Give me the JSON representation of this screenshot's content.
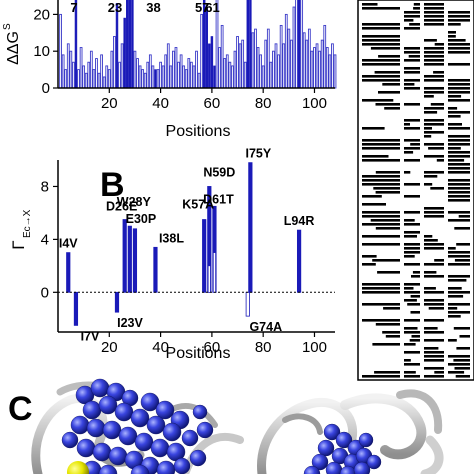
{
  "chart_data": [
    {
      "type": "bar",
      "panel": "",
      "xlabel": "Positions",
      "ylabel": "ΔΔG",
      "ylabel_sup": "S",
      "xlim": [
        0,
        108
      ],
      "ylim": [
        0,
        25
      ],
      "xticks": [
        20,
        40,
        60,
        80,
        100
      ],
      "yticks": [
        0,
        10,
        20
      ],
      "grid": false,
      "x": [
        1,
        2,
        3,
        4,
        5,
        6,
        7,
        8,
        9,
        10,
        11,
        12,
        13,
        14,
        15,
        16,
        17,
        18,
        19,
        20,
        21,
        22,
        23,
        24,
        25,
        26,
        27,
        28,
        29,
        30,
        31,
        32,
        33,
        34,
        35,
        36,
        37,
        38,
        39,
        40,
        41,
        42,
        43,
        44,
        45,
        46,
        47,
        48,
        49,
        50,
        51,
        52,
        53,
        54,
        55,
        56,
        57,
        58,
        59,
        60,
        61,
        62,
        63,
        64,
        65,
        66,
        67,
        68,
        69,
        70,
        71,
        72,
        73,
        74,
        75,
        76,
        77,
        78,
        79,
        80,
        81,
        82,
        83,
        84,
        85,
        86,
        87,
        88,
        89,
        90,
        91,
        92,
        93,
        94,
        95,
        96,
        97,
        98,
        99,
        100,
        101,
        102,
        103,
        104,
        105,
        106,
        107,
        108
      ],
      "values": [
        20,
        9,
        5,
        12,
        10,
        7,
        24,
        5,
        11,
        6,
        4,
        7,
        10,
        5,
        8,
        4,
        9,
        3,
        6,
        5,
        10,
        14,
        23,
        7,
        12,
        19,
        25,
        25,
        25,
        10,
        8,
        6,
        5,
        4,
        7,
        9,
        6,
        5,
        5,
        7,
        6,
        9,
        12,
        6,
        10,
        11,
        7,
        9,
        6,
        5,
        8,
        7,
        6,
        10,
        4,
        20,
        24,
        22,
        12,
        14,
        6,
        25,
        11,
        17,
        8,
        9,
        7,
        6,
        10,
        14,
        12,
        13,
        7,
        25,
        25,
        15,
        16,
        11,
        9,
        6,
        13,
        16,
        7,
        10,
        12,
        9,
        17,
        12,
        20,
        16,
        13,
        22,
        25,
        25,
        25,
        15,
        13,
        16,
        10,
        11,
        12,
        10,
        13,
        17,
        11,
        9,
        12,
        9
      ],
      "highlighted": [
        7,
        23,
        26,
        27,
        28,
        29,
        38,
        57,
        58,
        59,
        60,
        61,
        74,
        75,
        94
      ],
      "labels": [
        {
          "x": 7,
          "text": "7"
        },
        {
          "x": 23,
          "text": "23"
        },
        {
          "x": 38,
          "text": "38"
        },
        {
          "x": 57,
          "text": "57"
        },
        {
          "x": 61,
          "text": "61"
        }
      ]
    },
    {
      "type": "bar",
      "panel": "B",
      "xlabel": "Positions",
      "ylabel": "Γ",
      "ylabel_sub": "Ec→X",
      "xlim": [
        0,
        108
      ],
      "ylim": [
        -3,
        10
      ],
      "xticks": [
        20,
        40,
        60,
        80,
        100
      ],
      "yticks": [
        0,
        4,
        8
      ],
      "grid": false,
      "x": [
        4,
        7,
        23,
        26,
        28,
        30,
        38,
        57,
        59,
        61,
        74,
        75,
        94
      ],
      "values": [
        3.0,
        -2.5,
        -1.5,
        5.5,
        5.0,
        4.8,
        3.4,
        5.5,
        8.0,
        6.5,
        -1.8,
        9.8,
        4.7
      ],
      "hollow": [
        74
      ],
      "inner_segments": [
        {
          "x": 59,
          "value": 2.0
        },
        {
          "x": 61,
          "value": 3.0
        }
      ],
      "labels": [
        {
          "x": 4,
          "text": "I4V"
        },
        {
          "x": 7,
          "text": "I7V"
        },
        {
          "x": 23,
          "text": "I23V"
        },
        {
          "x": 26,
          "text": "D26E"
        },
        {
          "x": 28,
          "text": "W28Y"
        },
        {
          "x": 30,
          "text": "E30P"
        },
        {
          "x": 38,
          "text": "I38L"
        },
        {
          "x": 57,
          "text": "K57A"
        },
        {
          "x": 59,
          "text": "N59D"
        },
        {
          "x": 61,
          "text": "D61T"
        },
        {
          "x": 74,
          "text": "G74A"
        },
        {
          "x": 75,
          "text": "I75Y"
        },
        {
          "x": 94,
          "text": "L94R"
        }
      ]
    }
  ],
  "panel_c": {
    "label": "C"
  }
}
